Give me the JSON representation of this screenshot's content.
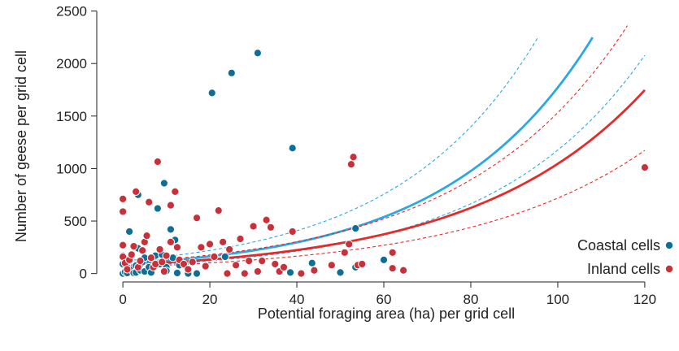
{
  "chart_data": {
    "type": "scatter",
    "xlabel": "Potential foraging area (ha) per grid cell",
    "ylabel": "Number of geese per grid cell",
    "xlim": [
      -6,
      126
    ],
    "ylim": [
      -80,
      2520
    ],
    "x_ticks": [
      0,
      20,
      40,
      60,
      80,
      100,
      120
    ],
    "y_ticks": [
      0,
      500,
      1000,
      1500,
      2000,
      2500
    ],
    "grid": false,
    "legend_position": "bottom-right",
    "colors": {
      "coastal": "#0e6e96",
      "inland": "#c8313a",
      "coastal_line": "#2ba8df",
      "inland_line": "#e52a2a"
    },
    "series": [
      {
        "name": "Coastal cells",
        "points": [
          [
            0,
            0
          ],
          [
            0.5,
            15
          ],
          [
            0,
            90
          ],
          [
            0,
            170
          ],
          [
            1,
            5
          ],
          [
            1,
            60
          ],
          [
            1.5,
            120
          ],
          [
            1.5,
            400
          ],
          [
            2,
            35
          ],
          [
            2.5,
            5
          ],
          [
            3,
            75
          ],
          [
            3,
            10
          ],
          [
            3.5,
            240
          ],
          [
            3.5,
            750
          ],
          [
            4,
            30
          ],
          [
            4.5,
            110
          ],
          [
            5,
            20
          ],
          [
            5,
            150
          ],
          [
            6,
            60
          ],
          [
            6.5,
            10
          ],
          [
            7,
            140
          ],
          [
            7.5,
            170
          ],
          [
            8,
            620
          ],
          [
            8.5,
            90
          ],
          [
            9,
            180
          ],
          [
            9.5,
            860
          ],
          [
            10,
            60
          ],
          [
            10,
            25
          ],
          [
            11,
            420
          ],
          [
            11.5,
            150
          ],
          [
            12,
            320
          ],
          [
            12.5,
            5
          ],
          [
            13,
            80
          ],
          [
            15,
            0
          ],
          [
            17,
            0
          ],
          [
            20.5,
            1720
          ],
          [
            23.5,
            160
          ],
          [
            25,
            1910
          ],
          [
            31,
            2100
          ],
          [
            39,
            1195
          ],
          [
            38.5,
            10
          ],
          [
            43.5,
            100
          ],
          [
            50,
            10
          ],
          [
            53.5,
            430
          ],
          [
            53.5,
            60
          ],
          [
            60,
            130
          ]
        ]
      },
      {
        "name": "Inland cells",
        "points": [
          [
            0,
            710
          ],
          [
            0,
            590
          ],
          [
            0,
            270
          ],
          [
            0,
            160
          ],
          [
            0.5,
            100
          ],
          [
            1,
            40
          ],
          [
            1.5,
            130
          ],
          [
            2,
            180
          ],
          [
            2.5,
            260
          ],
          [
            3,
            780
          ],
          [
            3.5,
            60
          ],
          [
            4,
            120
          ],
          [
            4.5,
            220
          ],
          [
            5,
            300
          ],
          [
            5.5,
            360
          ],
          [
            6,
            680
          ],
          [
            6.5,
            150
          ],
          [
            7,
            60
          ],
          [
            7.5,
            90
          ],
          [
            8,
            1065
          ],
          [
            8.5,
            230
          ],
          [
            9,
            110
          ],
          [
            9.5,
            20
          ],
          [
            10,
            170
          ],
          [
            11,
            300
          ],
          [
            11,
            650
          ],
          [
            12,
            780
          ],
          [
            12.5,
            250
          ],
          [
            13,
            130
          ],
          [
            14,
            90
          ],
          [
            15,
            40
          ],
          [
            16,
            110
          ],
          [
            17,
            530
          ],
          [
            18,
            250
          ],
          [
            19,
            70
          ],
          [
            20,
            280
          ],
          [
            21,
            160
          ],
          [
            22,
            600
          ],
          [
            23,
            300
          ],
          [
            24,
            0
          ],
          [
            24.5,
            230
          ],
          [
            26,
            80
          ],
          [
            27,
            330
          ],
          [
            28,
            0
          ],
          [
            29,
            120
          ],
          [
            30,
            450
          ],
          [
            31,
            20
          ],
          [
            32,
            120
          ],
          [
            33,
            510
          ],
          [
            34,
            440
          ],
          [
            35,
            90
          ],
          [
            36,
            20
          ],
          [
            37,
            60
          ],
          [
            39,
            400
          ],
          [
            41,
            0
          ],
          [
            44,
            30
          ],
          [
            48,
            80
          ],
          [
            51,
            200
          ],
          [
            52,
            280
          ],
          [
            52.5,
            1040
          ],
          [
            53,
            1110
          ],
          [
            54,
            80
          ],
          [
            55,
            90
          ],
          [
            62,
            200
          ],
          [
            62,
            50
          ],
          [
            64.5,
            30
          ],
          [
            120,
            1010
          ]
        ]
      }
    ],
    "fits": [
      {
        "name": "Coastal cells",
        "a": 90,
        "b": 0.0298,
        "lower_a": 68,
        "lower_b": 0.0285,
        "upper_a": 119,
        "upper_b": 0.0308,
        "x_max": 108,
        "upper_x_max": 95.5
      },
      {
        "name": "Inland cells",
        "a": 80,
        "b": 0.0257,
        "lower_a": 62,
        "lower_b": 0.0245,
        "upper_a": 103,
        "upper_b": 0.027,
        "x_max": 120,
        "upper_x_max": 116
      }
    ],
    "legend": [
      {
        "label": "Coastal cells",
        "series": "coastal"
      },
      {
        "label": "Inland cells",
        "series": "inland"
      }
    ]
  }
}
